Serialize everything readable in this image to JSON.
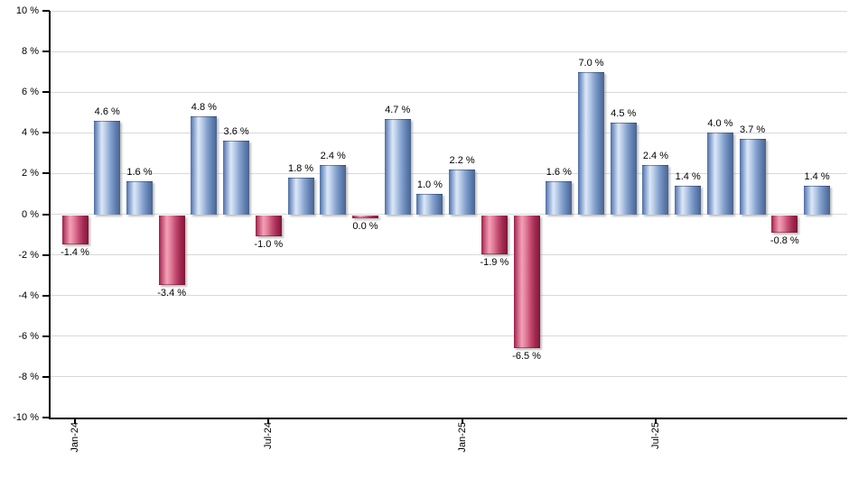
{
  "chart_data": {
    "type": "bar",
    "title": "",
    "xlabel": "",
    "ylabel": "",
    "ylim": [
      -10,
      10
    ],
    "grid": true,
    "legend": false,
    "y_ticks": [
      {
        "value": 10,
        "label": "10 %"
      },
      {
        "value": 8,
        "label": "8 %"
      },
      {
        "value": 6,
        "label": "6 %"
      },
      {
        "value": 4,
        "label": "4 %"
      },
      {
        "value": 2,
        "label": "2 %"
      },
      {
        "value": 0,
        "label": "0 %"
      },
      {
        "value": -2,
        "label": "-2 %"
      },
      {
        "value": -4,
        "label": "-4 %"
      },
      {
        "value": -6,
        "label": "-6 %"
      },
      {
        "value": -8,
        "label": "-8 %"
      },
      {
        "value": -10,
        "label": "-10 %"
      }
    ],
    "x_tick_labels": [
      {
        "index": 0,
        "label": "Jan-24"
      },
      {
        "index": 6,
        "label": "Jul-24"
      },
      {
        "index": 12,
        "label": "Jan-25"
      },
      {
        "index": 18,
        "label": "Jul-25"
      }
    ],
    "values": [
      -1.4,
      4.6,
      1.6,
      -3.4,
      4.8,
      3.6,
      -1.0,
      1.8,
      2.4,
      0.0,
      4.7,
      1.0,
      2.2,
      -1.9,
      -6.5,
      1.6,
      7.0,
      4.5,
      2.4,
      1.4,
      4.0,
      3.7,
      -0.8,
      1.4
    ],
    "value_labels": [
      "-1.4 %",
      "4.6 %",
      "1.6 %",
      "-3.4 %",
      "4.8 %",
      "3.6 %",
      "-1.0 %",
      "1.8 %",
      "2.4 %",
      "0.0 %",
      "4.7 %",
      "1.0 %",
      "2.2 %",
      "-1.9 %",
      "-6.5 %",
      "1.6 %",
      "7.0 %",
      "4.5 %",
      "2.4 %",
      "1.4 %",
      "4.0 %",
      "3.7 %",
      "-0.8 %",
      "1.4 %"
    ],
    "colors": {
      "axis": "#000000",
      "grid": "#d9d9d9",
      "label_text": "#000000",
      "positive_gradient": [
        "#4f6fa5",
        "#8fa9d2",
        "#dce8f7",
        "#b4c8e6",
        "#87a3ce",
        "#6484b6",
        "#49648f"
      ],
      "negative_gradient": [
        "#9a2049",
        "#cc5e82",
        "#f3a0b5",
        "#e07d9a",
        "#c54e72",
        "#a42b54",
        "#7f1638"
      ]
    }
  }
}
